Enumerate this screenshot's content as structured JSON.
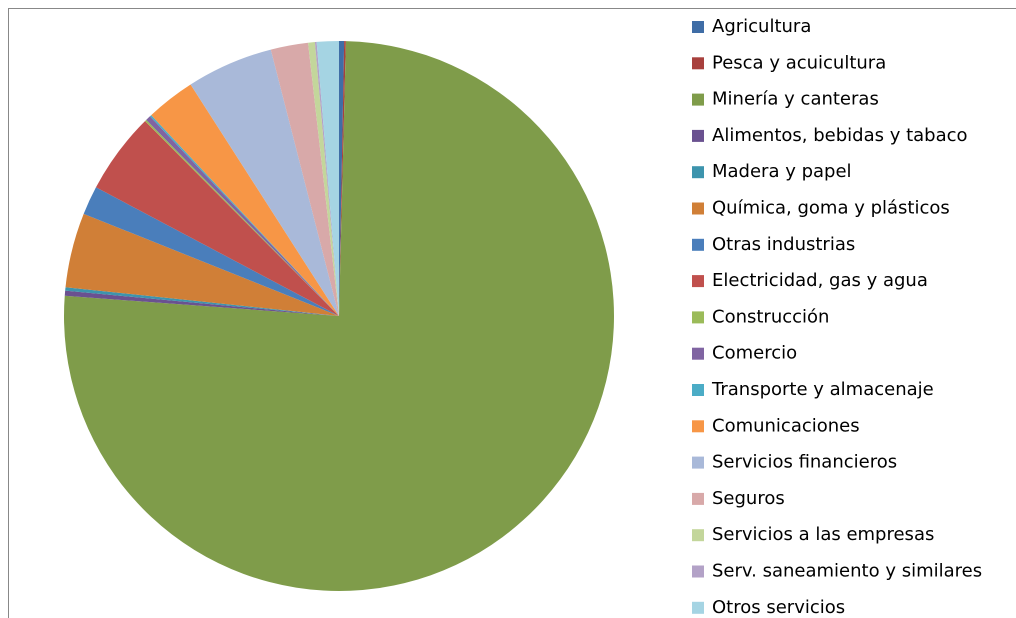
{
  "chart_data": {
    "type": "pie",
    "categories": [
      "Agricultura",
      "Pesca y acuicultura",
      "Minería y canteras",
      "Alimentos, bebidas y tabaco",
      "Madera y papel",
      "Química, goma y plásticos",
      "Otras industrias",
      "Electricidad, gas y agua",
      "Construcción",
      "Comercio",
      "Transporte y almacenaje",
      "Comunicaciones",
      "Servicios financieros",
      "Seguros",
      "Servicios a las empresas",
      "Serv. saneamiento y similares",
      "Otros servicios"
    ],
    "values": [
      0.3,
      0.1,
      76.0,
      0.3,
      0.2,
      4.4,
      1.7,
      4.8,
      0.1,
      0.3,
      0.1,
      2.9,
      5.1,
      2.2,
      0.4,
      0.1,
      1.3
    ],
    "colors": [
      "#3f6da6",
      "#a8403d",
      "#7f9c4a",
      "#6a5190",
      "#3d94ad",
      "#d07f37",
      "#4a7ebb",
      "#c0504d",
      "#9bbb59",
      "#8064a2",
      "#4bacc6",
      "#f79646",
      "#a9b9d9",
      "#d8a9a9",
      "#c3d69b",
      "#b3a2c7",
      "#a5d4e3"
    ],
    "legend": "right"
  }
}
